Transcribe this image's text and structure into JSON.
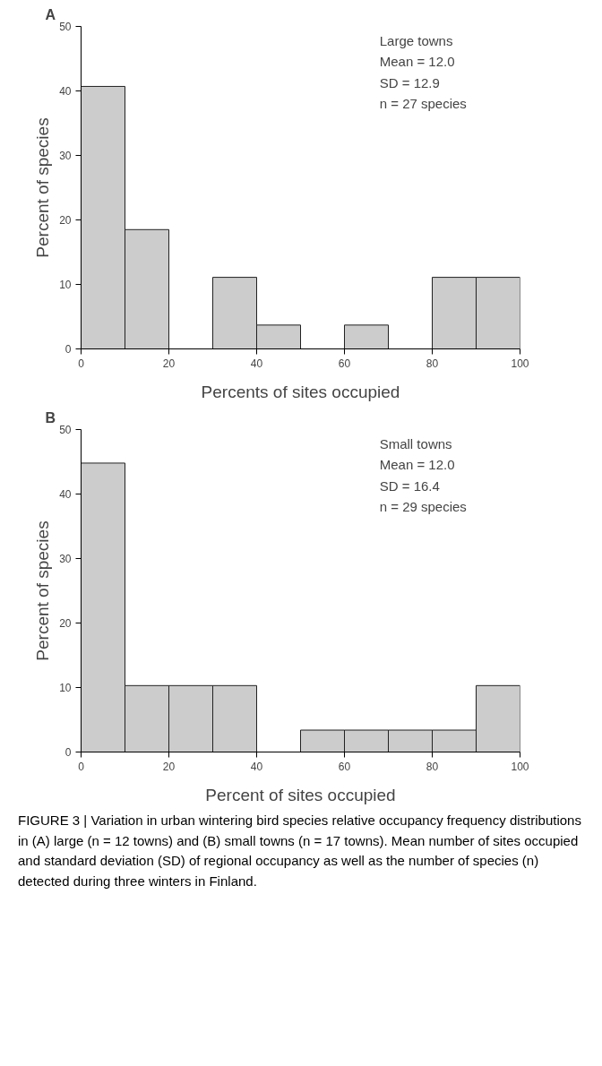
{
  "chart_data": [
    {
      "type": "histogram",
      "title": "A",
      "xlabel": "Percents of sites occupied",
      "ylabel": "Percent of species",
      "bins": [
        0,
        10,
        20,
        30,
        40,
        50,
        60,
        70,
        80,
        90,
        100
      ],
      "values": [
        40.7,
        18.5,
        0,
        11.1,
        3.7,
        0,
        3.7,
        0,
        11.1,
        11.1
      ],
      "color": "#cccccc",
      "xlim": [
        0,
        100
      ],
      "ylim": [
        0,
        50
      ],
      "xticks": [
        0,
        20,
        40,
        60,
        80,
        100
      ],
      "yticks": [
        0,
        10,
        20,
        30,
        40,
        50
      ],
      "grid": false,
      "annotations": [
        "Large towns",
        "Mean = 12.0",
        "SD = 12.9",
        "n = 27 species"
      ]
    },
    {
      "type": "histogram",
      "title": "B",
      "xlabel": "Percent of sites occupied",
      "ylabel": "Percent of species",
      "bins": [
        0,
        10,
        20,
        30,
        40,
        50,
        60,
        70,
        80,
        90,
        100
      ],
      "values": [
        44.8,
        10.3,
        10.3,
        10.3,
        0,
        3.4,
        3.4,
        3.4,
        3.4,
        10.3
      ],
      "color": "#cccccc",
      "xlim": [
        0,
        100
      ],
      "ylim": [
        0,
        50
      ],
      "xticks": [
        0,
        20,
        40,
        60,
        80,
        100
      ],
      "yticks": [
        0,
        10,
        20,
        30,
        40,
        50
      ],
      "grid": false,
      "annotations": [
        "Small towns",
        "Mean = 12.0",
        "SD = 16.4",
        "n = 29 species"
      ]
    },
    {
      "type": "other",
      "annotations": [
        "FIGURE 3 | Variation in urban wintering bird species relative occupancy frequency distributions in (A) large (n = 12 towns) and (B) small towns (n = 17 towns). Mean number of sites occupied and standard deviation (SD) of regional occupancy as well as the number of species (n) detected during three winters in Finland."
      ]
    }
  ]
}
